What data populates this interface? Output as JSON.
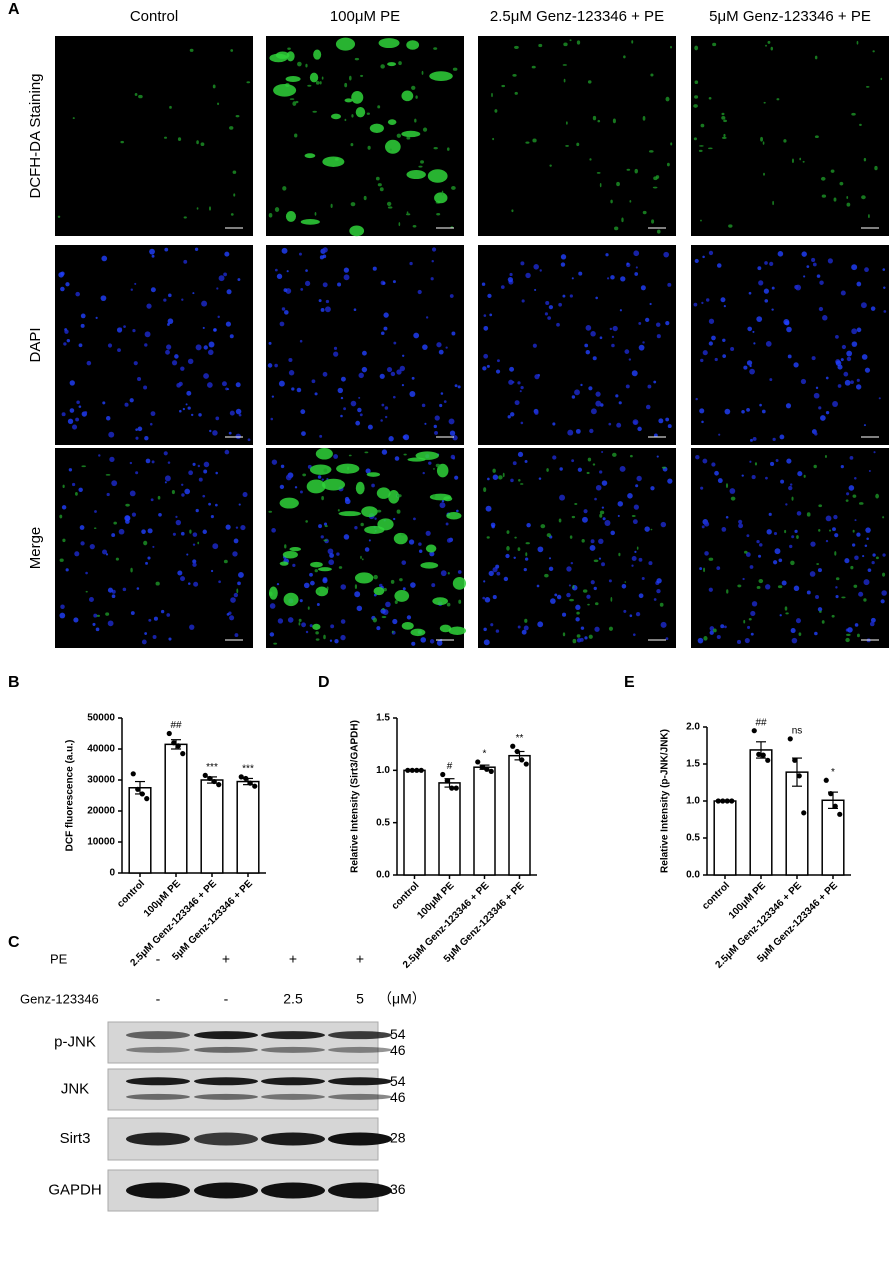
{
  "panel_a": {
    "label": "A",
    "columns": [
      "Control",
      "100μM PE",
      "2.5μM Genz-123346 + PE",
      "5μM Genz-123346 + PE"
    ],
    "rows": [
      "DCFH-DA Staining",
      "DAPI",
      "Merge"
    ]
  },
  "chart_data": [
    {
      "type": "bar",
      "label": "B",
      "ylabel": "DCF fluorescence (a.u.)",
      "categories": [
        "control",
        "100μM PE",
        "2.5μM Genz-123346 + PE",
        "5μM Genz-123346 + PE"
      ],
      "values": [
        27500,
        41500,
        30000,
        29500
      ],
      "errors": [
        2000,
        1500,
        1000,
        1000
      ],
      "points": [
        [
          32000,
          27000,
          25500,
          24000
        ],
        [
          45000,
          42000,
          41000,
          38500
        ],
        [
          31500,
          30500,
          29500,
          28500
        ],
        [
          31000,
          30500,
          29000,
          28000
        ]
      ],
      "significance": [
        null,
        "##",
        "***",
        "***"
      ],
      "color": "#ffffff",
      "ylim": [
        0,
        50000
      ],
      "yticks": [
        0,
        10000,
        20000,
        30000,
        40000,
        50000
      ]
    },
    {
      "type": "bar",
      "label": "D",
      "ylabel": "Relative Intensity (Sirt3/GAPDH)",
      "categories": [
        "control",
        "100μM PE",
        "2.5μM Genz-123346 + PE",
        "5μM Genz-123346 + PE"
      ],
      "values": [
        1.0,
        0.88,
        1.03,
        1.14
      ],
      "errors": [
        0,
        0.04,
        0.02,
        0.04
      ],
      "points": [
        [
          1.0,
          1.0,
          1.0,
          1.0
        ],
        [
          0.96,
          0.9,
          0.83,
          0.83
        ],
        [
          1.08,
          1.03,
          1.01,
          0.99
        ],
        [
          1.23,
          1.18,
          1.1,
          1.06
        ]
      ],
      "significance": [
        null,
        "#",
        "*",
        "**"
      ],
      "color": "#ffffff",
      "ylim": [
        0,
        1.5
      ],
      "yticks": [
        {
          "value": 0,
          "label": "0.0"
        },
        0.5,
        {
          "value": 1,
          "label": "1.0"
        },
        1.5
      ]
    },
    {
      "type": "bar",
      "label": "E",
      "ylabel": "Relative Intensity (p-JNK/JNK)",
      "categories": [
        "control",
        "100μM PE",
        "2.5μM Genz-123346 + PE",
        "5μM Genz-123346 + PE"
      ],
      "values": [
        1.0,
        1.69,
        1.39,
        1.01
      ],
      "errors": [
        0,
        0.11,
        0.19,
        0.11
      ],
      "points": [
        [
          1.0,
          1.0,
          1.0,
          1.0
        ],
        [
          1.95,
          1.63,
          1.62,
          1.55
        ],
        [
          1.84,
          1.55,
          1.34,
          0.84
        ],
        [
          1.28,
          1.1,
          0.93,
          0.82
        ]
      ],
      "significance": [
        null,
        "##",
        "ns",
        "*"
      ],
      "color": "#ffffff",
      "ylim": [
        0,
        2.0
      ],
      "yticks": [
        {
          "value": 0,
          "label": "0.0"
        },
        0.5,
        {
          "value": 1,
          "label": "1.0"
        },
        1.5,
        {
          "value": 2,
          "label": "2.0"
        }
      ]
    }
  ],
  "panel_c": {
    "label": "C",
    "treatments": [
      {
        "name": "PE",
        "levels": [
          "-",
          "+",
          "+",
          "+"
        ]
      },
      {
        "name": "Genz-123346",
        "levels": [
          "-",
          "-",
          "2.5",
          "5"
        ],
        "unit": "（μM）"
      }
    ],
    "blots": [
      {
        "name": "p-JNK",
        "sizes": [
          "54",
          "46"
        ]
      },
      {
        "name": "JNK",
        "sizes": [
          "54",
          "46"
        ]
      },
      {
        "name": "Sirt3",
        "sizes": [
          "28"
        ]
      },
      {
        "name": "GAPDH",
        "sizes": [
          "36"
        ]
      }
    ]
  }
}
